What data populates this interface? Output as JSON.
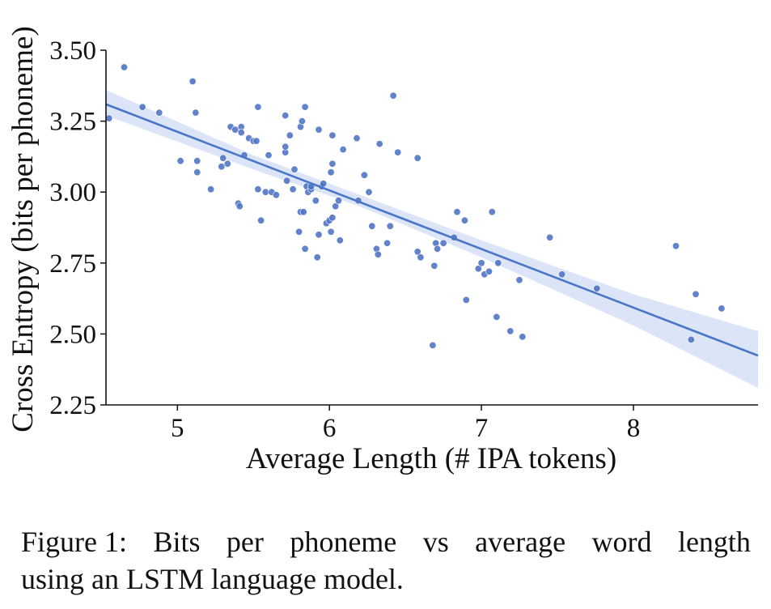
{
  "chart_data": {
    "type": "scatter",
    "xlabel": "Average Length (# IPA tokens)",
    "ylabel": "Cross Entropy (bits per phoneme)",
    "xlim": [
      4.53,
      8.82
    ],
    "ylim": [
      2.25,
      3.5
    ],
    "xticks": [
      5,
      6,
      7,
      8
    ],
    "xtick_labels": [
      "5",
      "6",
      "7",
      "8"
    ],
    "yticks": [
      2.25,
      2.5,
      2.75,
      3.0,
      3.25,
      3.5
    ],
    "ytick_labels": [
      "2.25",
      "2.50",
      "2.75",
      "3.00",
      "3.25",
      "3.50"
    ],
    "point_color": "#4c72c4",
    "fit_color": "#4a76c8",
    "band_color": "#dbe5f7",
    "regression": {
      "slope": -0.2065,
      "intercept": 4.245,
      "ci_upper": [
        [
          4.53,
          3.36
        ],
        [
          5.5,
          3.13
        ],
        [
          6.2,
          2.99
        ],
        [
          7.0,
          2.83
        ],
        [
          8.0,
          2.64
        ],
        [
          8.82,
          2.51
        ]
      ],
      "ci_lower": [
        [
          4.53,
          3.27
        ],
        [
          5.5,
          3.08
        ],
        [
          6.2,
          2.95
        ],
        [
          7.0,
          2.77
        ],
        [
          8.0,
          2.53
        ],
        [
          8.82,
          2.31
        ]
      ]
    },
    "points": [
      [
        4.55,
        3.26
      ],
      [
        4.65,
        3.44
      ],
      [
        4.77,
        3.3
      ],
      [
        4.88,
        3.28
      ],
      [
        5.02,
        3.11
      ],
      [
        5.1,
        3.39
      ],
      [
        5.12,
        3.28
      ],
      [
        5.13,
        3.11
      ],
      [
        5.13,
        3.07
      ],
      [
        5.22,
        3.01
      ],
      [
        5.29,
        3.09
      ],
      [
        5.3,
        3.12
      ],
      [
        5.33,
        3.1
      ],
      [
        5.35,
        3.23
      ],
      [
        5.38,
        3.22
      ],
      [
        5.42,
        3.23
      ],
      [
        5.42,
        3.21
      ],
      [
        5.4,
        2.96
      ],
      [
        5.41,
        2.95
      ],
      [
        5.44,
        3.13
      ],
      [
        5.47,
        3.19
      ],
      [
        5.5,
        3.18
      ],
      [
        5.52,
        3.18
      ],
      [
        5.53,
        3.3
      ],
      [
        5.53,
        3.01
      ],
      [
        5.55,
        2.9
      ],
      [
        5.58,
        3.0
      ],
      [
        5.6,
        3.13
      ],
      [
        5.62,
        3.0
      ],
      [
        5.65,
        2.99
      ],
      [
        5.71,
        3.27
      ],
      [
        5.71,
        3.14
      ],
      [
        5.71,
        3.16
      ],
      [
        5.72,
        3.04
      ],
      [
        5.74,
        3.2
      ],
      [
        5.76,
        3.01
      ],
      [
        5.77,
        3.08
      ],
      [
        5.8,
        2.86
      ],
      [
        5.81,
        2.93
      ],
      [
        5.81,
        3.23
      ],
      [
        5.82,
        3.25
      ],
      [
        5.83,
        2.93
      ],
      [
        5.84,
        2.8
      ],
      [
        5.84,
        3.3
      ],
      [
        5.85,
        3.02
      ],
      [
        5.86,
        3.0
      ],
      [
        5.88,
        3.01
      ],
      [
        5.88,
        3.02
      ],
      [
        5.91,
        2.97
      ],
      [
        5.92,
        2.77
      ],
      [
        5.93,
        2.85
      ],
      [
        5.93,
        3.22
      ],
      [
        5.95,
        3.02
      ],
      [
        5.96,
        3.03
      ],
      [
        5.98,
        2.89
      ],
      [
        6.0,
        2.9
      ],
      [
        6.01,
        3.07
      ],
      [
        6.01,
        2.86
      ],
      [
        6.02,
        2.91
      ],
      [
        6.02,
        3.1
      ],
      [
        6.02,
        3.2
      ],
      [
        6.04,
        2.95
      ],
      [
        6.06,
        2.97
      ],
      [
        6.07,
        2.83
      ],
      [
        6.09,
        3.15
      ],
      [
        6.18,
        3.19
      ],
      [
        6.19,
        2.97
      ],
      [
        6.23,
        3.06
      ],
      [
        6.26,
        3.0
      ],
      [
        6.28,
        2.88
      ],
      [
        6.31,
        2.8
      ],
      [
        6.32,
        2.78
      ],
      [
        6.33,
        3.17
      ],
      [
        6.38,
        2.82
      ],
      [
        6.4,
        2.88
      ],
      [
        6.42,
        3.34
      ],
      [
        6.45,
        3.14
      ],
      [
        6.58,
        3.12
      ],
      [
        6.58,
        2.79
      ],
      [
        6.6,
        2.77
      ],
      [
        6.68,
        2.46
      ],
      [
        6.69,
        2.74
      ],
      [
        6.7,
        2.82
      ],
      [
        6.71,
        2.8
      ],
      [
        6.75,
        2.82
      ],
      [
        6.82,
        2.84
      ],
      [
        6.84,
        2.93
      ],
      [
        6.89,
        2.9
      ],
      [
        6.9,
        2.62
      ],
      [
        6.98,
        2.73
      ],
      [
        7.0,
        2.75
      ],
      [
        7.02,
        2.71
      ],
      [
        7.05,
        2.72
      ],
      [
        7.07,
        2.93
      ],
      [
        7.1,
        2.56
      ],
      [
        7.11,
        2.75
      ],
      [
        7.19,
        2.51
      ],
      [
        7.25,
        2.69
      ],
      [
        7.27,
        2.49
      ],
      [
        7.45,
        2.84
      ],
      [
        7.53,
        2.71
      ],
      [
        7.76,
        2.66
      ],
      [
        8.28,
        2.81
      ],
      [
        8.38,
        2.48
      ],
      [
        8.41,
        2.64
      ],
      [
        8.58,
        2.59
      ]
    ]
  },
  "caption": {
    "line1_words": [
      "Figure 1:",
      "Bits",
      "per",
      "phoneme",
      "vs",
      "average",
      "word",
      "length"
    ],
    "line2": "using an LSTM language model."
  }
}
